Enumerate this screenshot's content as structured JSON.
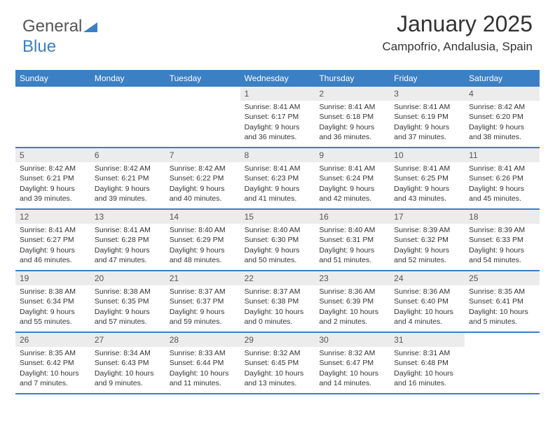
{
  "brand": {
    "part1": "General",
    "part2": "Blue",
    "color1": "#555555",
    "color2": "#3b7fc4"
  },
  "header": {
    "title": "January 2025",
    "subtitle": "Campofrio, Andalusia, Spain"
  },
  "style": {
    "header_bg": "#3b7fc4",
    "header_text": "#ffffff",
    "daynum_bg": "#ececec",
    "rule_color": "#3b7fc4",
    "body_font_size": 10.5,
    "head_font_size": 12,
    "title_font_size": 32,
    "subtitle_font_size": 17
  },
  "daynames": [
    "Sunday",
    "Monday",
    "Tuesday",
    "Wednesday",
    "Thursday",
    "Friday",
    "Saturday"
  ],
  "weeks": [
    [
      {
        "n": "",
        "sr": "",
        "ss": "",
        "d1": "",
        "d2": ""
      },
      {
        "n": "",
        "sr": "",
        "ss": "",
        "d1": "",
        "d2": ""
      },
      {
        "n": "",
        "sr": "",
        "ss": "",
        "d1": "",
        "d2": ""
      },
      {
        "n": "1",
        "sr": "Sunrise: 8:41 AM",
        "ss": "Sunset: 6:17 PM",
        "d1": "Daylight: 9 hours",
        "d2": "and 36 minutes."
      },
      {
        "n": "2",
        "sr": "Sunrise: 8:41 AM",
        "ss": "Sunset: 6:18 PM",
        "d1": "Daylight: 9 hours",
        "d2": "and 36 minutes."
      },
      {
        "n": "3",
        "sr": "Sunrise: 8:41 AM",
        "ss": "Sunset: 6:19 PM",
        "d1": "Daylight: 9 hours",
        "d2": "and 37 minutes."
      },
      {
        "n": "4",
        "sr": "Sunrise: 8:42 AM",
        "ss": "Sunset: 6:20 PM",
        "d1": "Daylight: 9 hours",
        "d2": "and 38 minutes."
      }
    ],
    [
      {
        "n": "5",
        "sr": "Sunrise: 8:42 AM",
        "ss": "Sunset: 6:21 PM",
        "d1": "Daylight: 9 hours",
        "d2": "and 39 minutes."
      },
      {
        "n": "6",
        "sr": "Sunrise: 8:42 AM",
        "ss": "Sunset: 6:21 PM",
        "d1": "Daylight: 9 hours",
        "d2": "and 39 minutes."
      },
      {
        "n": "7",
        "sr": "Sunrise: 8:42 AM",
        "ss": "Sunset: 6:22 PM",
        "d1": "Daylight: 9 hours",
        "d2": "and 40 minutes."
      },
      {
        "n": "8",
        "sr": "Sunrise: 8:41 AM",
        "ss": "Sunset: 6:23 PM",
        "d1": "Daylight: 9 hours",
        "d2": "and 41 minutes."
      },
      {
        "n": "9",
        "sr": "Sunrise: 8:41 AM",
        "ss": "Sunset: 6:24 PM",
        "d1": "Daylight: 9 hours",
        "d2": "and 42 minutes."
      },
      {
        "n": "10",
        "sr": "Sunrise: 8:41 AM",
        "ss": "Sunset: 6:25 PM",
        "d1": "Daylight: 9 hours",
        "d2": "and 43 minutes."
      },
      {
        "n": "11",
        "sr": "Sunrise: 8:41 AM",
        "ss": "Sunset: 6:26 PM",
        "d1": "Daylight: 9 hours",
        "d2": "and 45 minutes."
      }
    ],
    [
      {
        "n": "12",
        "sr": "Sunrise: 8:41 AM",
        "ss": "Sunset: 6:27 PM",
        "d1": "Daylight: 9 hours",
        "d2": "and 46 minutes."
      },
      {
        "n": "13",
        "sr": "Sunrise: 8:41 AM",
        "ss": "Sunset: 6:28 PM",
        "d1": "Daylight: 9 hours",
        "d2": "and 47 minutes."
      },
      {
        "n": "14",
        "sr": "Sunrise: 8:40 AM",
        "ss": "Sunset: 6:29 PM",
        "d1": "Daylight: 9 hours",
        "d2": "and 48 minutes."
      },
      {
        "n": "15",
        "sr": "Sunrise: 8:40 AM",
        "ss": "Sunset: 6:30 PM",
        "d1": "Daylight: 9 hours",
        "d2": "and 50 minutes."
      },
      {
        "n": "16",
        "sr": "Sunrise: 8:40 AM",
        "ss": "Sunset: 6:31 PM",
        "d1": "Daylight: 9 hours",
        "d2": "and 51 minutes."
      },
      {
        "n": "17",
        "sr": "Sunrise: 8:39 AM",
        "ss": "Sunset: 6:32 PM",
        "d1": "Daylight: 9 hours",
        "d2": "and 52 minutes."
      },
      {
        "n": "18",
        "sr": "Sunrise: 8:39 AM",
        "ss": "Sunset: 6:33 PM",
        "d1": "Daylight: 9 hours",
        "d2": "and 54 minutes."
      }
    ],
    [
      {
        "n": "19",
        "sr": "Sunrise: 8:38 AM",
        "ss": "Sunset: 6:34 PM",
        "d1": "Daylight: 9 hours",
        "d2": "and 55 minutes."
      },
      {
        "n": "20",
        "sr": "Sunrise: 8:38 AM",
        "ss": "Sunset: 6:35 PM",
        "d1": "Daylight: 9 hours",
        "d2": "and 57 minutes."
      },
      {
        "n": "21",
        "sr": "Sunrise: 8:37 AM",
        "ss": "Sunset: 6:37 PM",
        "d1": "Daylight: 9 hours",
        "d2": "and 59 minutes."
      },
      {
        "n": "22",
        "sr": "Sunrise: 8:37 AM",
        "ss": "Sunset: 6:38 PM",
        "d1": "Daylight: 10 hours",
        "d2": "and 0 minutes."
      },
      {
        "n": "23",
        "sr": "Sunrise: 8:36 AM",
        "ss": "Sunset: 6:39 PM",
        "d1": "Daylight: 10 hours",
        "d2": "and 2 minutes."
      },
      {
        "n": "24",
        "sr": "Sunrise: 8:36 AM",
        "ss": "Sunset: 6:40 PM",
        "d1": "Daylight: 10 hours",
        "d2": "and 4 minutes."
      },
      {
        "n": "25",
        "sr": "Sunrise: 8:35 AM",
        "ss": "Sunset: 6:41 PM",
        "d1": "Daylight: 10 hours",
        "d2": "and 5 minutes."
      }
    ],
    [
      {
        "n": "26",
        "sr": "Sunrise: 8:35 AM",
        "ss": "Sunset: 6:42 PM",
        "d1": "Daylight: 10 hours",
        "d2": "and 7 minutes."
      },
      {
        "n": "27",
        "sr": "Sunrise: 8:34 AM",
        "ss": "Sunset: 6:43 PM",
        "d1": "Daylight: 10 hours",
        "d2": "and 9 minutes."
      },
      {
        "n": "28",
        "sr": "Sunrise: 8:33 AM",
        "ss": "Sunset: 6:44 PM",
        "d1": "Daylight: 10 hours",
        "d2": "and 11 minutes."
      },
      {
        "n": "29",
        "sr": "Sunrise: 8:32 AM",
        "ss": "Sunset: 6:45 PM",
        "d1": "Daylight: 10 hours",
        "d2": "and 13 minutes."
      },
      {
        "n": "30",
        "sr": "Sunrise: 8:32 AM",
        "ss": "Sunset: 6:47 PM",
        "d1": "Daylight: 10 hours",
        "d2": "and 14 minutes."
      },
      {
        "n": "31",
        "sr": "Sunrise: 8:31 AM",
        "ss": "Sunset: 6:48 PM",
        "d1": "Daylight: 10 hours",
        "d2": "and 16 minutes."
      },
      {
        "n": "",
        "sr": "",
        "ss": "",
        "d1": "",
        "d2": ""
      }
    ]
  ]
}
